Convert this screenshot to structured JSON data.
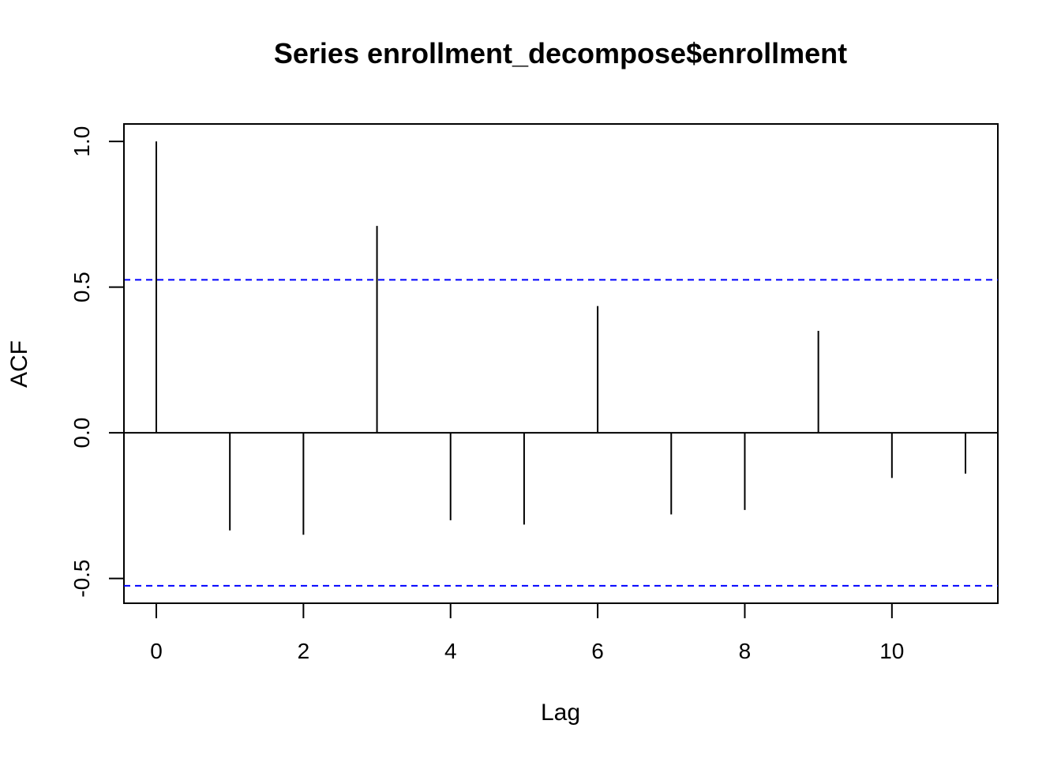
{
  "chart_data": {
    "type": "bar",
    "title": "Series  enrollment_decompose$enrollment",
    "xlabel": "Lag",
    "ylabel": "ACF",
    "x": [
      0,
      1,
      2,
      3,
      4,
      5,
      6,
      7,
      8,
      9,
      10,
      11
    ],
    "values": [
      1.0,
      -0.335,
      -0.35,
      0.71,
      -0.3,
      -0.315,
      0.435,
      -0.28,
      -0.265,
      0.35,
      -0.155,
      -0.14
    ],
    "xlim": [
      -0.44,
      11.44
    ],
    "ylim": [
      -0.585,
      1.06
    ],
    "xticks": [
      0,
      2,
      4,
      6,
      8,
      10
    ],
    "xtick_labels": [
      "0",
      "2",
      "4",
      "6",
      "8",
      "10"
    ],
    "yticks": [
      -0.5,
      0.0,
      0.5,
      1.0
    ],
    "ytick_labels": [
      "-0.5",
      "0.0",
      "0.5",
      "1.0"
    ],
    "confidence_bound": 0.525,
    "zero_line": 0,
    "grid": false,
    "colors": {
      "spike": "#000000",
      "confidence_line": "#0000ff",
      "axis": "#000000",
      "background": "#ffffff"
    }
  }
}
